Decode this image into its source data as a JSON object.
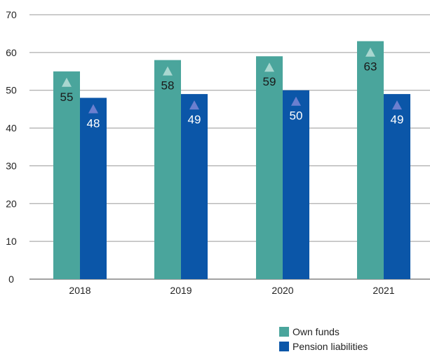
{
  "chart_data": {
    "type": "bar",
    "categories": [
      "2018",
      "2019",
      "2020",
      "2021"
    ],
    "series": [
      {
        "name": "Own funds",
        "values": [
          55,
          58,
          59,
          63
        ],
        "color": "#4aa59c"
      },
      {
        "name": "Pension liabilities",
        "values": [
          48,
          49,
          50,
          49
        ],
        "color": "#0b56a8"
      }
    ],
    "ylim": [
      0,
      70
    ],
    "yticks": [
      0,
      10,
      20,
      30,
      40,
      50,
      60,
      70
    ],
    "grid": true,
    "legend_position": "bottom-right",
    "marker": "triangle",
    "marker_colors": [
      "#a9d7d0",
      "#6b7fcf"
    ],
    "label_colors": [
      "#1a1a1a",
      "#ffffff"
    ]
  }
}
